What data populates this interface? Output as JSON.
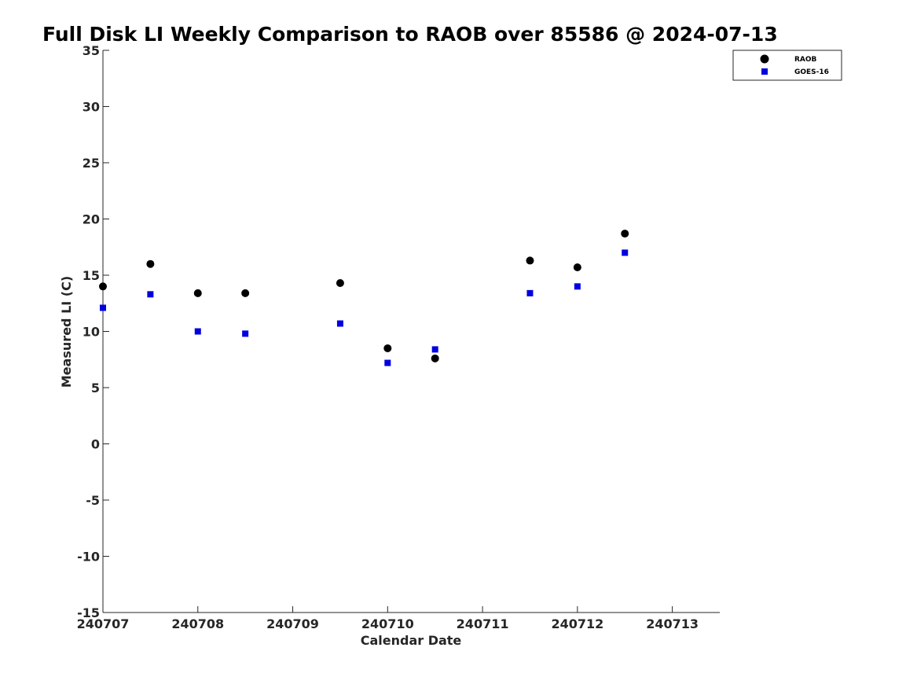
{
  "chart_data": {
    "type": "scatter",
    "title": "Full Disk LI Weekly Comparison to RAOB over 85586 @ 2024-07-13",
    "xlabel": "Calendar Date",
    "ylabel": "Measured LI (C)",
    "x_ticks": [
      240707,
      240708,
      240709,
      240710,
      240711,
      240712,
      240713
    ],
    "x_tick_labels": [
      "240707",
      "240708",
      "240709",
      "240710",
      "240711",
      "240712",
      "240713"
    ],
    "xlim": [
      240707,
      240713.5
    ],
    "y_ticks": [
      -15,
      -10,
      -5,
      0,
      5,
      10,
      15,
      20,
      25,
      30,
      35
    ],
    "y_tick_labels": [
      "-15",
      "-10",
      "-5",
      "0",
      "5",
      "10",
      "15",
      "20",
      "25",
      "30",
      "35"
    ],
    "ylim": [
      -15,
      35
    ],
    "grid": false,
    "legend_position": "top-right",
    "series": [
      {
        "name": "RAOB",
        "marker": "circle",
        "color": "#000000",
        "points": [
          {
            "x": 240707.0,
            "y": 14.0
          },
          {
            "x": 240707.5,
            "y": 16.0
          },
          {
            "x": 240708.0,
            "y": 13.4
          },
          {
            "x": 240708.5,
            "y": 13.4
          },
          {
            "x": 240709.5,
            "y": 14.3
          },
          {
            "x": 240710.0,
            "y": 8.5
          },
          {
            "x": 240710.5,
            "y": 7.6
          },
          {
            "x": 240711.5,
            "y": 16.3
          },
          {
            "x": 240712.0,
            "y": 15.7
          },
          {
            "x": 240712.5,
            "y": 18.7
          }
        ]
      },
      {
        "name": "GOES-16",
        "marker": "square",
        "color": "#0000e0",
        "points": [
          {
            "x": 240707.0,
            "y": 12.1
          },
          {
            "x": 240707.5,
            "y": 13.3
          },
          {
            "x": 240708.0,
            "y": 10.0
          },
          {
            "x": 240708.5,
            "y": 9.8
          },
          {
            "x": 240709.5,
            "y": 10.7
          },
          {
            "x": 240710.0,
            "y": 7.2
          },
          {
            "x": 240710.5,
            "y": 8.4
          },
          {
            "x": 240711.5,
            "y": 13.4
          },
          {
            "x": 240712.0,
            "y": 14.0
          },
          {
            "x": 240712.5,
            "y": 17.0
          }
        ]
      }
    ]
  }
}
